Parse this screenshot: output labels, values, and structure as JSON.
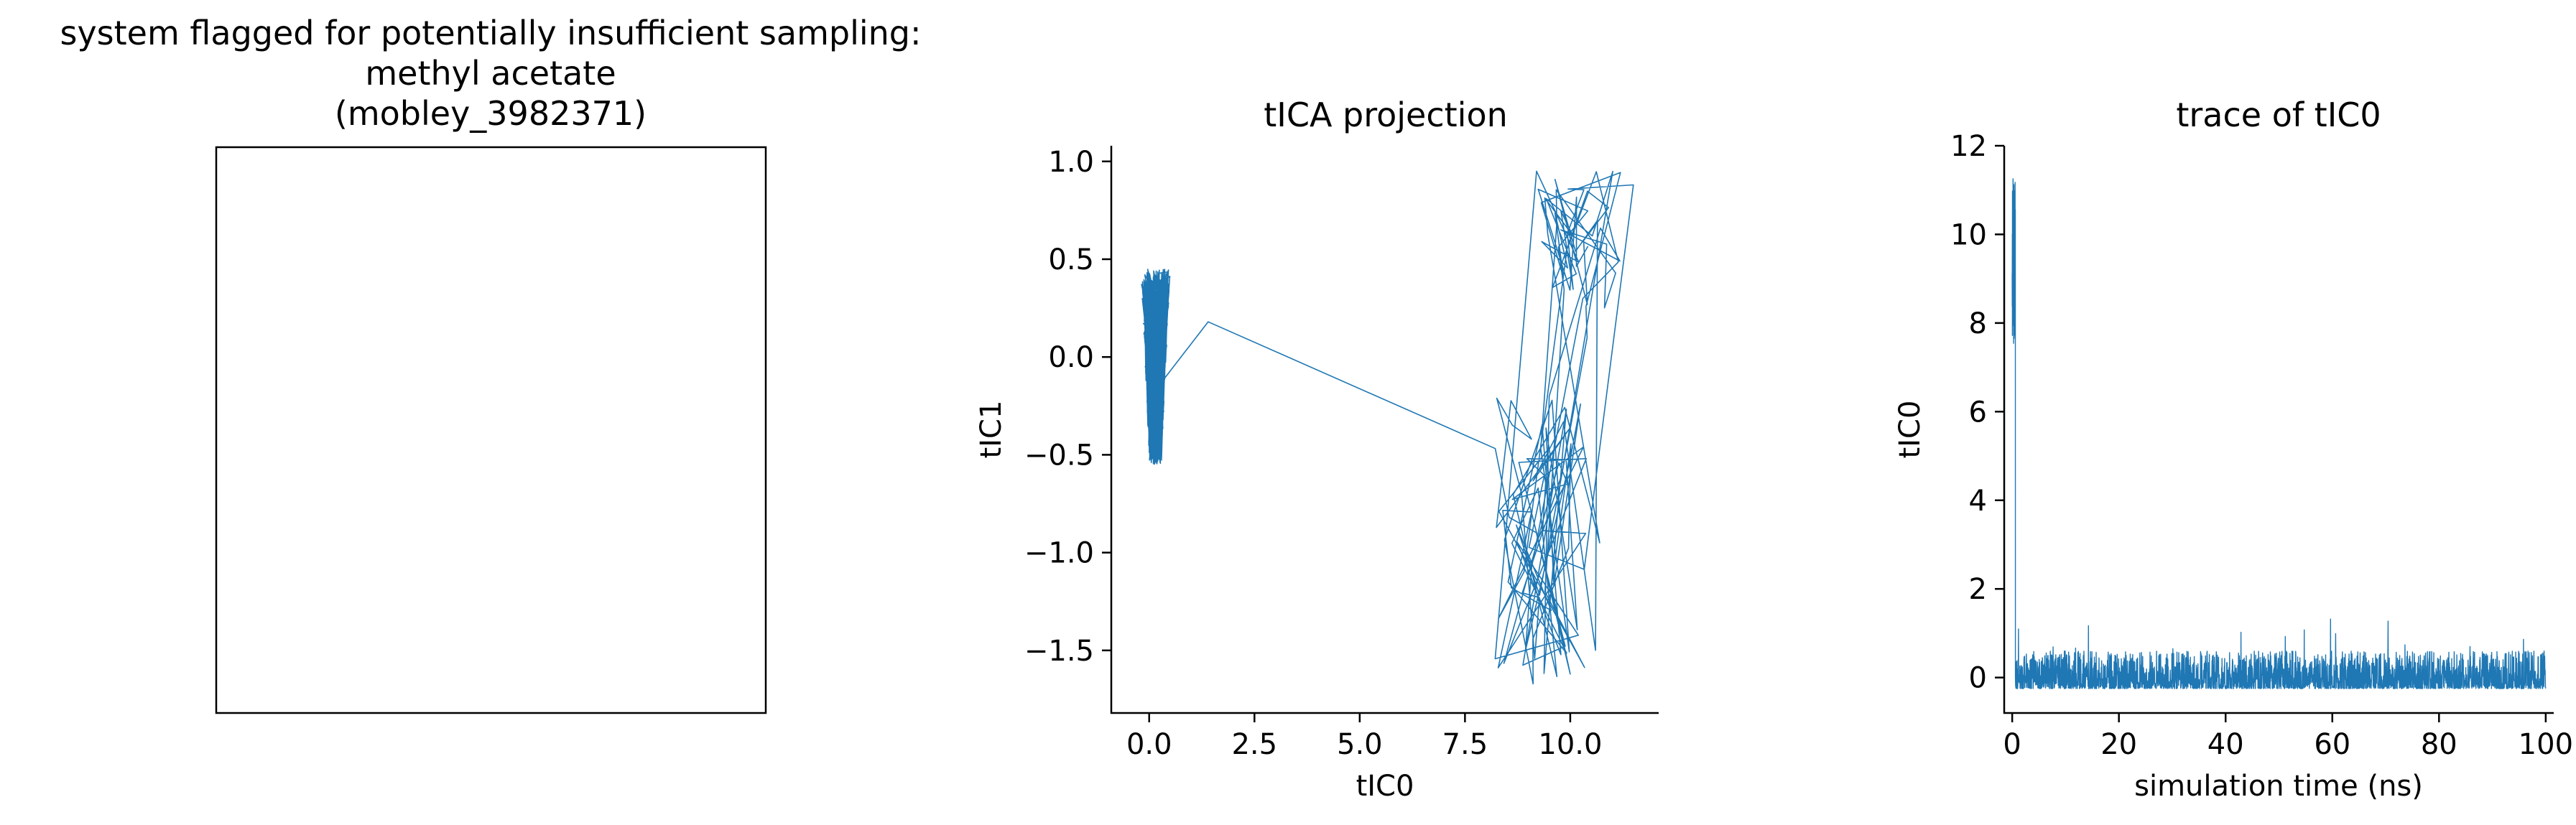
{
  "figure": {
    "background": "#ffffff",
    "line_color": "#1f77b4"
  },
  "chart_data": [
    {
      "type": "image",
      "title_lines": [
        "system flagged for potentially insufficient sampling:",
        "methyl acetate",
        "(mobley_3982371)"
      ],
      "content": "empty"
    },
    {
      "type": "line",
      "title": "tICA projection",
      "xlabel": "tIC0",
      "ylabel": "tIC1",
      "xlim": [
        -0.9,
        12.1
      ],
      "ylim": [
        -1.82,
        1.08
      ],
      "xticks": [
        0.0,
        2.5,
        5.0,
        7.5,
        10.0
      ],
      "xtick_labels": [
        "0.0",
        "2.5",
        "5.0",
        "7.5",
        "10.0"
      ],
      "yticks": [
        1.0,
        0.5,
        0.0,
        -0.5,
        -1.0,
        -1.5
      ],
      "ytick_labels": [
        "1.0",
        "0.5",
        "0.0",
        "−0.5",
        "−1.0",
        "−1.5"
      ],
      "grid": false,
      "clusters": [
        {
          "name": "cluster near origin",
          "x_center": 0.15,
          "x_spread": 0.35,
          "y_range": [
            -0.55,
            0.45
          ],
          "points": 700
        },
        {
          "name": "upper-right cluster",
          "x_center": 10.2,
          "x_spread": 1.0,
          "y_range": [
            0.25,
            0.95
          ],
          "points": 45
        },
        {
          "name": "lower-right cluster",
          "x_center": 9.3,
          "x_spread": 1.1,
          "y_range": [
            -1.7,
            -0.2
          ],
          "points": 70
        }
      ],
      "series": [
        {
          "x": [
            1.4,
            9.3,
            9.5,
            8.9,
            10.6,
            9.8,
            10.3,
            11.5,
            10.7,
            9.2,
            10.4,
            9.4
          ],
          "y": [
            0.18,
            -0.47,
            -0.2,
            -1.1,
            -1.5,
            -0.6,
            0.3,
            0.88,
            -0.95,
            0.95,
            0.1,
            -1.2
          ]
        }
      ]
    },
    {
      "type": "line",
      "title": "trace of tIC0",
      "xlabel": "simulation time (ns)",
      "ylabel": "tIC0",
      "xlim": [
        -1.5,
        101.5
      ],
      "ylim": [
        -0.8,
        12.0
      ],
      "xticks": [
        0,
        20,
        40,
        60,
        80,
        100
      ],
      "xtick_labels": [
        "0",
        "20",
        "40",
        "60",
        "80",
        "100"
      ],
      "yticks": [
        12,
        10,
        8,
        6,
        4,
        2,
        0
      ],
      "ytick_labels": [
        "12",
        "10",
        "8",
        "6",
        "4",
        "2",
        "0"
      ],
      "grid": false,
      "segments": [
        {
          "name": "initial excursion",
          "t_range": [
            0.0,
            0.6
          ],
          "y_range": [
            7.5,
            11.4
          ]
        },
        {
          "name": "baseline",
          "t_range": [
            0.6,
            100.0
          ],
          "y_range": [
            -0.25,
            0.6
          ],
          "occasional_peak": 1.35
        }
      ]
    }
  ]
}
